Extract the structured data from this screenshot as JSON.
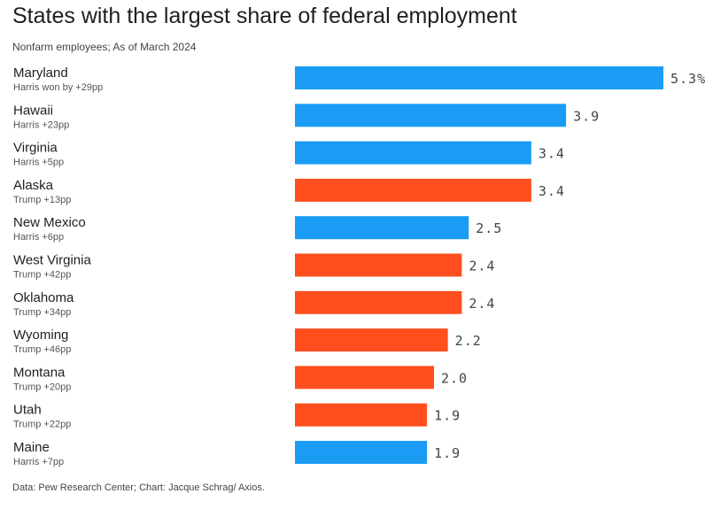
{
  "title": "States with the largest share of federal employment",
  "subtitle": "Nonfarm employees; As of March 2024",
  "source": "Data: Pew Research Center; Chart: Jacque Schrag/ Axios.",
  "colors": {
    "harris": "#1a9cf5",
    "trump": "#ff4f1f"
  },
  "chart_data": {
    "type": "bar",
    "orientation": "horizontal",
    "title": "States with the largest share of federal employment",
    "subtitle": "Nonfarm employees; As of March 2024",
    "value_suffix_first": "%",
    "xlim": [
      0,
      5.3
    ],
    "grid": false,
    "categories": [
      "Maryland",
      "Hawaii",
      "Virginia",
      "Alaska",
      "New Mexico",
      "West Virginia",
      "Oklahoma",
      "Wyoming",
      "Montana",
      "Utah",
      "Maine"
    ],
    "sublabels": [
      "Harris won by +29pp",
      "Harris +23pp",
      "Harris +5pp",
      "Trump +13pp",
      "Harris +6pp",
      "Trump +42pp",
      "Trump +34pp",
      "Trump +46pp",
      "Trump +20pp",
      "Trump +22pp",
      "Harris +7pp"
    ],
    "winner": [
      "harris",
      "harris",
      "harris",
      "trump",
      "harris",
      "trump",
      "trump",
      "trump",
      "trump",
      "trump",
      "harris"
    ],
    "values": [
      5.3,
      3.9,
      3.4,
      3.4,
      2.5,
      2.4,
      2.4,
      2.2,
      2.0,
      1.9,
      1.9
    ],
    "value_labels": [
      "5.3%",
      "3.9",
      "3.4",
      "3.4",
      "2.5",
      "2.4",
      "2.4",
      "2.2",
      "2.0",
      "1.9",
      "1.9"
    ]
  }
}
